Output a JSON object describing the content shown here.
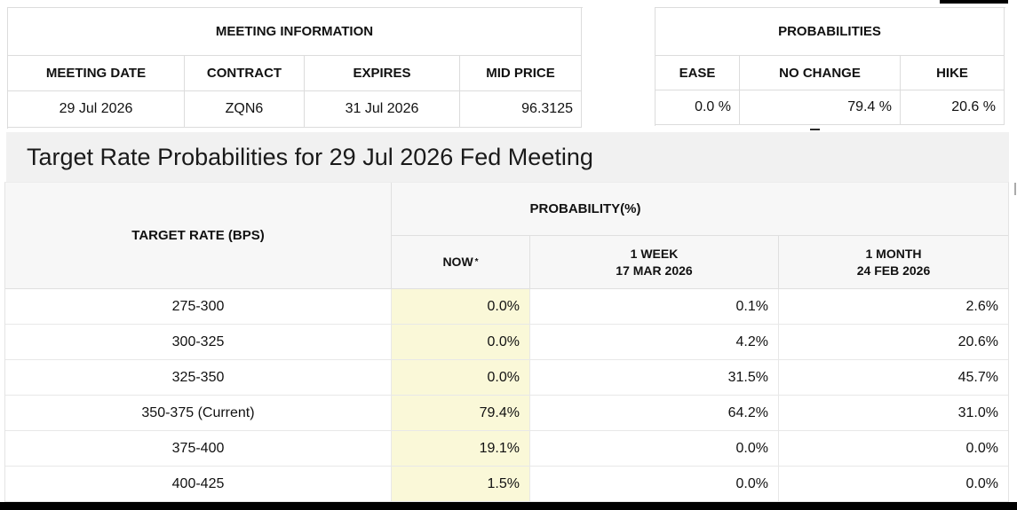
{
  "meeting_information": {
    "title": "MEETING INFORMATION",
    "columns": [
      "MEETING DATE",
      "CONTRACT",
      "EXPIRES",
      "MID PRICE"
    ],
    "values": [
      "29 Jul 2026",
      "ZQN6",
      "31 Jul 2026",
      "96.3125"
    ]
  },
  "probabilities": {
    "title": "PROBABILITIES",
    "columns": [
      "EASE",
      "NO CHANGE",
      "HIKE"
    ],
    "values": [
      "0.0 %",
      "79.4 %",
      "20.6 %"
    ]
  },
  "page_title": "Target Rate Probabilities for 29 Jul 2026 Fed Meeting",
  "target_table": {
    "rate_header": "TARGET RATE (BPS)",
    "probability_header": "PROBABILITY(%)",
    "col_now": "NOW",
    "now_suffix": "*",
    "col_week_label": "1 WEEK",
    "col_week_date": "17 MAR 2026",
    "col_month_label": "1 MONTH",
    "col_month_date": "24 FEB 2026",
    "rows": [
      {
        "rate": "275-300",
        "now": "0.0%",
        "week": "0.1%",
        "month": "2.6%"
      },
      {
        "rate": "300-325",
        "now": "0.0%",
        "week": "4.2%",
        "month": "20.6%"
      },
      {
        "rate": "325-350",
        "now": "0.0%",
        "week": "31.5%",
        "month": "45.7%"
      },
      {
        "rate": "350-375 (Current)",
        "now": "79.4%",
        "week": "64.2%",
        "month": "31.0%"
      },
      {
        "rate": "375-400",
        "now": "19.1%",
        "week": "0.0%",
        "month": "0.0%"
      },
      {
        "rate": "400-425",
        "now": "1.5%",
        "week": "0.0%",
        "month": "0.0%"
      }
    ]
  },
  "colors": {
    "now_highlight": "#FAF8D8",
    "banner_background": "#F1F1F1",
    "header_background": "#F7F7F7",
    "border": "#E0E0E0",
    "bar_black": "#000000"
  }
}
